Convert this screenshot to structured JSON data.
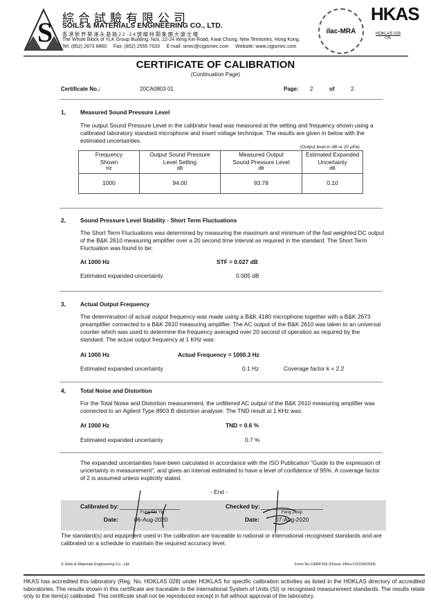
{
  "header": {
    "company_cn": "綜合試驗有限公司",
    "company_en": "SOILS & MATERIALS ENGINEERING CO., LTD.",
    "address_cn": "香港新界葵涌永基路22-24號耀林閣集團大廈全幢",
    "address_en": "The Whole Block of YLK Group Building, Nos. 22-24 Wing Kei Road, Kwai Chung, New Territories, Hong Kong.",
    "contact": "Tel: (852) 2873 6860     Fax: (852) 2555 7533     E-mail: smec@cigismec.com     Website: www.cigismec.com",
    "logo_ilac": "ilac-MRA",
    "logo_hkas": "HKAS",
    "logo_hoklas": "HOKLAS 028",
    "logo_cal": "CAL"
  },
  "title": "CERTIFICATE OF CALIBRATION",
  "subtitle": "(Continuation Page)",
  "cert": {
    "label": "Certificate No.:",
    "number": "20CA0803 01",
    "page_label": "Page:",
    "page": "2",
    "of_label": "of",
    "pages": "2"
  },
  "s1": {
    "num": "1,",
    "title": "Measured Sound Pressure Level",
    "text": "The output Sound Pressure Level in the calibrator head was measured at the setting and frequency shown using a calibrated laboratory standard microphone and insert voltage technique. The results are given in below with the estimated uncertainties.",
    "note": "(Output level in dB re 20 µPa)",
    "headers": [
      {
        "l1": "Frequency",
        "l2": "Shown",
        "u": "Hz"
      },
      {
        "l1": "Output Sound Pressure",
        "l2": "Level Setting",
        "u": "dB"
      },
      {
        "l1": "Measured Output",
        "l2": "Sound Pressure Level",
        "u": "dB"
      },
      {
        "l1": "Estimated Expanded",
        "l2": "Uncertainty",
        "u": "dB"
      }
    ],
    "row": [
      "1000",
      "94.00",
      "93.78",
      "0.10"
    ]
  },
  "s2": {
    "num": "2,",
    "title": "Sound Pressure Level Stability - Short Term Fluctuations",
    "text": "The Short Term Fluctuations was determined by measuring the maximum and minimum of the fast weighted DC output of the B&K 2610 measuring amplifier over a 20 second time interval as required in the standard. The Short Term Fluctuation was found to be:",
    "at": "At 1000 Hz",
    "result": "STF = 0.027 dB",
    "unc_label": "Estimated expanded uncertainty",
    "unc": "0.005 dB"
  },
  "s3": {
    "num": "3,",
    "title": "Actual Output Frequency",
    "text": "The determination of actual output frequency was made using a B&K 4180 microphone together with a B&K 2673 preamplifier connected to a B&K 2610 measuring amplifier. The AC output of the B&K 2610 was taken to an universal counter which was used to determine the frequency averaged over 20 second of operation as required by the standard. The actual output frequency at 1 KHz was:",
    "at": "At 1000 Hz",
    "result": "Actual Frequency = 1000.3 Hz",
    "unc_label": "Estimated expanded uncertainty",
    "unc": "0.1 Hz",
    "coverage": "Coverage factor k = 2.2"
  },
  "s4": {
    "num": "4,",
    "title": "Total Noise and Distortion",
    "text": "For the Total Noise and Distortion measurement, the unfiltered AC output of the B&K 2610 measuring amplifier was connected to an Agilent Type 8903 B distortion analyser. The TND result at 1 KHz was:",
    "at": "At 1000 Hz",
    "result": "TND = 0.6 %",
    "unc_label": "Estimated expanded uncertainty",
    "unc": "0.7 %"
  },
  "closing": "The expanded uncertainties have been calculated in accordance with the ISO Publication \"Guide to the expression of uncertainty in measurement\", and gives an interval estimated to have a level of confidence of 95%. A coverage factor of 2 is assumed unless explicitly stated.",
  "end": "-   End   -",
  "sign": {
    "cal_label": "Calibrated by:",
    "cal_name": "Fung Chi Yip",
    "cal_date_label": "Date:",
    "cal_date": "06-Aug-2020",
    "chk_label": "Checked by:",
    "chk_name": "Feng Junqi",
    "chk_date_label": "Date:",
    "chk_date": "07-Aug-2020"
  },
  "traceable": "The standard(s) and equipment used in the calibration are traceable to national or international recognised standards and are calibrated on a schedule to maintain the required accuracy level.",
  "footer": {
    "copyright": "© Soils & Materials Engineering Co., Ltd.",
    "form": "Form No.CARP156-2/Issue 1/Rev.C/01/05/2005"
  },
  "hkas": "HKAS has accredited this laboratory (Reg. No. HOKLAS 028) under HOKLAS for specific calibration activities as listed in the HOKLAS directory of accredited laboratories. The results shown in this certificate are traceable to the International System of Units (SI) or recognised measurement standards. The results relate only to the item(s) calibrated. This certificate shall not be reproduced except in full without approval of the laboratory."
}
